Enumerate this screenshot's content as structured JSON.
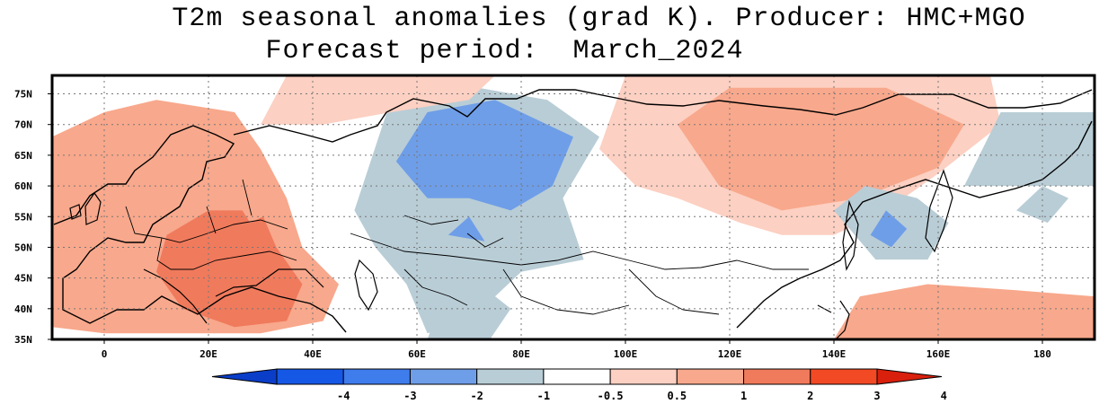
{
  "header": {
    "title_line1": "T2m seasonal anomalies (grad K). Producer: HMC+MGO",
    "title_line2": "Forecast period:  March_2024"
  },
  "map": {
    "extent": {
      "lon_min": -10,
      "lon_max": 190,
      "lat_min": 35,
      "lat_max": 78
    },
    "lat_ticks": [
      {
        "value": 75,
        "label": "75N"
      },
      {
        "value": 70,
        "label": "70N"
      },
      {
        "value": 65,
        "label": "65N"
      },
      {
        "value": 60,
        "label": "60N"
      },
      {
        "value": 55,
        "label": "55N"
      },
      {
        "value": 50,
        "label": "50N"
      },
      {
        "value": 45,
        "label": "45N"
      },
      {
        "value": 40,
        "label": "40N"
      },
      {
        "value": 35,
        "label": "35N"
      }
    ],
    "lon_ticks": [
      {
        "value": 0,
        "label": "0"
      },
      {
        "value": 20,
        "label": "20E"
      },
      {
        "value": 40,
        "label": "40E"
      },
      {
        "value": 60,
        "label": "60E"
      },
      {
        "value": 80,
        "label": "80E"
      },
      {
        "value": 100,
        "label": "100E"
      },
      {
        "value": 120,
        "label": "120E"
      },
      {
        "value": 140,
        "label": "140E"
      },
      {
        "value": 160,
        "label": "160E"
      },
      {
        "value": 180,
        "label": "180"
      }
    ],
    "grid": "dotted",
    "anomaly_regions": [
      {
        "name": "europe-warm",
        "level": "1 to 2",
        "color": "#f8a88c",
        "points": [
          [
            -10,
            37
          ],
          [
            -10,
            68
          ],
          [
            0,
            72
          ],
          [
            10,
            74
          ],
          [
            25,
            72
          ],
          [
            30,
            66
          ],
          [
            35,
            58
          ],
          [
            38,
            50
          ],
          [
            45,
            44
          ],
          [
            42,
            38
          ],
          [
            30,
            36
          ],
          [
            15,
            36
          ],
          [
            0,
            36
          ]
        ]
      },
      {
        "name": "europe-warm-core",
        "level": "2 to 3",
        "color": "#f07a5c",
        "points": [
          [
            12,
            52
          ],
          [
            20,
            56
          ],
          [
            30,
            56
          ],
          [
            33,
            50
          ],
          [
            38,
            44
          ],
          [
            35,
            38
          ],
          [
            25,
            37
          ],
          [
            15,
            40
          ],
          [
            10,
            46
          ]
        ]
      },
      {
        "name": "scandinavia-warm",
        "level": "1 to 2",
        "color": "#f8a88c",
        "points": [
          [
            25,
            58
          ],
          [
            32,
            62
          ],
          [
            33,
            56
          ],
          [
            28,
            54
          ]
        ]
      },
      {
        "name": "west-siberia-cool",
        "level": "-1 to -0.5",
        "color": "#b9cdd6",
        "points": [
          [
            48,
            56
          ],
          [
            55,
            74
          ],
          [
            65,
            77
          ],
          [
            85,
            74
          ],
          [
            95,
            68
          ],
          [
            88,
            58
          ],
          [
            92,
            48
          ],
          [
            80,
            46
          ],
          [
            70,
            38
          ],
          [
            62,
            36
          ],
          [
            58,
            44
          ],
          [
            52,
            50
          ]
        ]
      },
      {
        "name": "west-siberia-cold",
        "level": "-2 to -1",
        "color": "#6f9ee8",
        "points": [
          [
            56,
            64
          ],
          [
            62,
            72
          ],
          [
            75,
            74
          ],
          [
            90,
            68
          ],
          [
            86,
            60
          ],
          [
            78,
            56
          ],
          [
            70,
            58
          ],
          [
            62,
            58
          ]
        ]
      },
      {
        "name": "kazakh-cold",
        "level": "-2 to -1",
        "color": "#6f9ee8",
        "points": [
          [
            66,
            52
          ],
          [
            70,
            55
          ],
          [
            73,
            51
          ]
        ]
      },
      {
        "name": "arctic-warm",
        "level": "0.5 to 1",
        "color": "#fcd0c2",
        "points": [
          [
            30,
            70
          ],
          [
            35,
            78
          ],
          [
            75,
            78
          ],
          [
            70,
            74
          ],
          [
            55,
            72
          ],
          [
            42,
            70
          ]
        ]
      },
      {
        "name": "east-siberia-warm",
        "level": "0.5 to 1",
        "color": "#fcd0c2",
        "points": [
          [
            95,
            66
          ],
          [
            100,
            78
          ],
          [
            170,
            78
          ],
          [
            172,
            70
          ],
          [
            160,
            62
          ],
          [
            150,
            56
          ],
          [
            140,
            52
          ],
          [
            130,
            52
          ],
          [
            122,
            54
          ],
          [
            110,
            58
          ],
          [
            102,
            60
          ]
        ]
      },
      {
        "name": "east-siberia-warm-core",
        "level": "1 to 2",
        "color": "#f8a88c",
        "points": [
          [
            110,
            70
          ],
          [
            120,
            76
          ],
          [
            150,
            76
          ],
          [
            165,
            70
          ],
          [
            160,
            63
          ],
          [
            145,
            58
          ],
          [
            130,
            56
          ],
          [
            118,
            60
          ]
        ]
      },
      {
        "name": "okhotsk-cool",
        "level": "-1 to -0.5",
        "color": "#b9cdd6",
        "points": [
          [
            140,
            56
          ],
          [
            146,
            60
          ],
          [
            156,
            58
          ],
          [
            162,
            54
          ],
          [
            158,
            48
          ],
          [
            148,
            48
          ]
        ]
      },
      {
        "name": "okhotsk-cold",
        "level": "-2 to -1",
        "color": "#6f9ee8",
        "points": [
          [
            147,
            52
          ],
          [
            150,
            56
          ],
          [
            154,
            53
          ],
          [
            151,
            50
          ]
        ]
      },
      {
        "name": "pacific-warm",
        "level": "1 to 2",
        "color": "#f8a88c",
        "points": [
          [
            140,
            35
          ],
          [
            145,
            42
          ],
          [
            158,
            44
          ],
          [
            175,
            43
          ],
          [
            190,
            42
          ],
          [
            190,
            35
          ]
        ]
      },
      {
        "name": "central-asia-cool",
        "level": "-1 to -0.5",
        "color": "#b9cdd6",
        "points": [
          [
            62,
            35
          ],
          [
            65,
            42
          ],
          [
            72,
            44
          ],
          [
            78,
            40
          ],
          [
            74,
            35
          ]
        ]
      },
      {
        "name": "arctic-cool-northeast",
        "level": "-1 to -0.5",
        "color": "#b9cdd6",
        "points": [
          [
            165,
            60
          ],
          [
            172,
            72
          ],
          [
            190,
            72
          ],
          [
            190,
            60
          ]
        ]
      },
      {
        "name": "kamchatka-cool",
        "level": "-1 to -0.5",
        "color": "#b9cdd6",
        "points": [
          [
            175,
            56
          ],
          [
            180,
            60
          ],
          [
            185,
            58
          ],
          [
            181,
            54
          ]
        ]
      }
    ]
  },
  "colorbar": {
    "ticks": [
      "-4",
      "-3",
      "-2",
      "-1",
      "-0.5",
      "0.5",
      "1",
      "2",
      "3",
      "4"
    ],
    "colors": [
      "#0a3ec8",
      "#1658e6",
      "#3f7cec",
      "#6f9ee8",
      "#b9cdd6",
      "#ffffff",
      "#fcd0c2",
      "#f8a88c",
      "#f07a5c",
      "#f24a24",
      "#d8200c"
    ]
  }
}
